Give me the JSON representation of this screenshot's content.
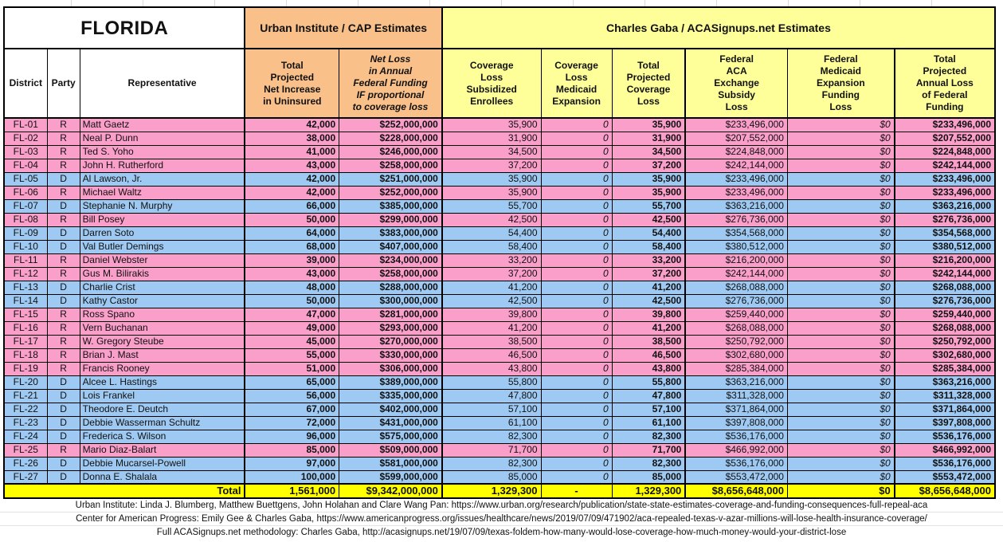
{
  "colors": {
    "republican_row": "#FA9ECA",
    "democrat_row": "#9EC9F2",
    "urban_header": "#F9C089",
    "gaba_header": "#FFFF99",
    "total_row": "#FFFF00"
  },
  "sheet": {
    "title": "FLORIDA",
    "groups": {
      "urban": "Urban Institute / CAP Estimates",
      "gaba": "Charles Gaba / ACASignups.net Estimates"
    },
    "columns": [
      "District",
      "Party",
      "Representative",
      "Total\nProjected\nNet Increase\nin Uninsured",
      "Net Loss\nin Annual\nFederal Funding\nIF proportional\nto coverage loss",
      "Coverage\nLoss\nSubsidized\nEnrollees",
      "Coverage\nLoss\nMedicaid\nExpansion",
      "Total\nProjected\nCoverage\nLoss",
      "Federal\nACA\nExchange\nSubsidy\nLoss",
      "Federal\nMedicaid\nExpansion\nFunding\nLoss",
      "Total\nProjected\nAnnual Loss\nof Federal\nFunding"
    ],
    "rows": [
      {
        "district": "FL-01",
        "party": "R",
        "rep": "Matt Gaetz",
        "values": [
          "42,000",
          "$252,000,000",
          "35,900",
          "0",
          "35,900",
          "$233,496,000",
          "$0",
          "$233,496,000"
        ]
      },
      {
        "district": "FL-02",
        "party": "R",
        "rep": "Neal P. Dunn",
        "values": [
          "38,000",
          "$228,000,000",
          "31,900",
          "0",
          "31,900",
          "$207,552,000",
          "$0",
          "$207,552,000"
        ]
      },
      {
        "district": "FL-03",
        "party": "R",
        "rep": "Ted S. Yoho",
        "values": [
          "41,000",
          "$246,000,000",
          "34,500",
          "0",
          "34,500",
          "$224,848,000",
          "$0",
          "$224,848,000"
        ]
      },
      {
        "district": "FL-04",
        "party": "R",
        "rep": "John H. Rutherford",
        "values": [
          "43,000",
          "$258,000,000",
          "37,200",
          "0",
          "37,200",
          "$242,144,000",
          "$0",
          "$242,144,000"
        ]
      },
      {
        "district": "FL-05",
        "party": "D",
        "rep": "Al Lawson, Jr.",
        "values": [
          "42,000",
          "$251,000,000",
          "35,900",
          "0",
          "35,900",
          "$233,496,000",
          "$0",
          "$233,496,000"
        ]
      },
      {
        "district": "FL-06",
        "party": "R",
        "rep": "Michael Waltz",
        "values": [
          "42,000",
          "$252,000,000",
          "35,900",
          "0",
          "35,900",
          "$233,496,000",
          "$0",
          "$233,496,000"
        ]
      },
      {
        "district": "FL-07",
        "party": "D",
        "rep": "Stephanie N. Murphy",
        "values": [
          "66,000",
          "$385,000,000",
          "55,700",
          "0",
          "55,700",
          "$363,216,000",
          "$0",
          "$363,216,000"
        ]
      },
      {
        "district": "FL-08",
        "party": "R",
        "rep": "Bill Posey",
        "values": [
          "50,000",
          "$299,000,000",
          "42,500",
          "0",
          "42,500",
          "$276,736,000",
          "$0",
          "$276,736,000"
        ]
      },
      {
        "district": "FL-09",
        "party": "D",
        "rep": "Darren Soto",
        "values": [
          "64,000",
          "$383,000,000",
          "54,400",
          "0",
          "54,400",
          "$354,568,000",
          "$0",
          "$354,568,000"
        ]
      },
      {
        "district": "FL-10",
        "party": "D",
        "rep": "Val Butler Demings",
        "values": [
          "68,000",
          "$407,000,000",
          "58,400",
          "0",
          "58,400",
          "$380,512,000",
          "$0",
          "$380,512,000"
        ]
      },
      {
        "district": "FL-11",
        "party": "R",
        "rep": "Daniel Webster",
        "values": [
          "39,000",
          "$234,000,000",
          "33,200",
          "0",
          "33,200",
          "$216,200,000",
          "$0",
          "$216,200,000"
        ]
      },
      {
        "district": "FL-12",
        "party": "R",
        "rep": "Gus M. Bilirakis",
        "values": [
          "43,000",
          "$258,000,000",
          "37,200",
          "0",
          "37,200",
          "$242,144,000",
          "$0",
          "$242,144,000"
        ]
      },
      {
        "district": "FL-13",
        "party": "D",
        "rep": "Charlie Crist",
        "values": [
          "48,000",
          "$288,000,000",
          "41,200",
          "0",
          "41,200",
          "$268,088,000",
          "$0",
          "$268,088,000"
        ]
      },
      {
        "district": "FL-14",
        "party": "D",
        "rep": "Kathy Castor",
        "values": [
          "50,000",
          "$300,000,000",
          "42,500",
          "0",
          "42,500",
          "$276,736,000",
          "$0",
          "$276,736,000"
        ]
      },
      {
        "district": "FL-15",
        "party": "R",
        "rep": "Ross Spano",
        "values": [
          "47,000",
          "$281,000,000",
          "39,800",
          "0",
          "39,800",
          "$259,440,000",
          "$0",
          "$259,440,000"
        ]
      },
      {
        "district": "FL-16",
        "party": "R",
        "rep": "Vern Buchanan",
        "values": [
          "49,000",
          "$293,000,000",
          "41,200",
          "0",
          "41,200",
          "$268,088,000",
          "$0",
          "$268,088,000"
        ]
      },
      {
        "district": "FL-17",
        "party": "R",
        "rep": "W. Gregory Steube",
        "values": [
          "45,000",
          "$270,000,000",
          "38,500",
          "0",
          "38,500",
          "$250,792,000",
          "$0",
          "$250,792,000"
        ]
      },
      {
        "district": "FL-18",
        "party": "R",
        "rep": "Brian J. Mast",
        "values": [
          "55,000",
          "$330,000,000",
          "46,500",
          "0",
          "46,500",
          "$302,680,000",
          "$0",
          "$302,680,000"
        ]
      },
      {
        "district": "FL-19",
        "party": "R",
        "rep": "Francis Rooney",
        "values": [
          "51,000",
          "$306,000,000",
          "43,800",
          "0",
          "43,800",
          "$285,384,000",
          "$0",
          "$285,384,000"
        ]
      },
      {
        "district": "FL-20",
        "party": "D",
        "rep": "Alcee L. Hastings",
        "values": [
          "65,000",
          "$389,000,000",
          "55,800",
          "0",
          "55,800",
          "$363,216,000",
          "$0",
          "$363,216,000"
        ]
      },
      {
        "district": "FL-21",
        "party": "D",
        "rep": "Lois Frankel",
        "values": [
          "56,000",
          "$335,000,000",
          "47,800",
          "0",
          "47,800",
          "$311,328,000",
          "$0",
          "$311,328,000"
        ]
      },
      {
        "district": "FL-22",
        "party": "D",
        "rep": "Theodore E. Deutch",
        "values": [
          "67,000",
          "$402,000,000",
          "57,100",
          "0",
          "57,100",
          "$371,864,000",
          "$0",
          "$371,864,000"
        ]
      },
      {
        "district": "FL-23",
        "party": "D",
        "rep": "Debbie Wasserman Schultz",
        "values": [
          "72,000",
          "$431,000,000",
          "61,100",
          "0",
          "61,100",
          "$397,808,000",
          "$0",
          "$397,808,000"
        ]
      },
      {
        "district": "FL-24",
        "party": "D",
        "rep": "Frederica S. Wilson",
        "values": [
          "96,000",
          "$575,000,000",
          "82,300",
          "0",
          "82,300",
          "$536,176,000",
          "$0",
          "$536,176,000"
        ]
      },
      {
        "district": "FL-25",
        "party": "R",
        "rep": "Mario Diaz-Balart",
        "values": [
          "85,000",
          "$509,000,000",
          "71,700",
          "0",
          "71,700",
          "$466,992,000",
          "$0",
          "$466,992,000"
        ]
      },
      {
        "district": "FL-26",
        "party": "D",
        "rep": "Debbie Mucarsel-Powell",
        "values": [
          "97,000",
          "$581,000,000",
          "82,300",
          "0",
          "82,300",
          "$536,176,000",
          "$0",
          "$536,176,000"
        ]
      },
      {
        "district": "FL-27",
        "party": "D",
        "rep": "Donna E. Shalala",
        "values": [
          "100,000",
          "$599,000,000",
          "85,000",
          "0",
          "85,000",
          "$553,472,000",
          "$0",
          "$553,472,000"
        ]
      }
    ],
    "total": {
      "label": "Total",
      "values": [
        "1,561,000",
        "$9,342,000,000",
        "1,329,300",
        "-",
        "1,329,300",
        "$8,656,648,000",
        "$0",
        "$8,656,648,000"
      ]
    },
    "footnotes": [
      "Urban Institute: Linda J. Blumberg, Matthew Buettgens, John Holahan and Clare Wang Pan: https://www.urban.org/research/publication/state-state-estimates-coverage-and-funding-consequences-full-repeal-aca",
      "Center for American Progress: Emily Gee & Charles Gaba, https://www.americanprogress.org/issues/healthcare/news/2019/07/09/471902/aca-repealed-texas-v-azar-millions-will-lose-health-insurance-coverage/",
      "Full ACASignups.net methodology: Charles Gaba, http://acasignups.net/19/07/09/texas-foldem-how-many-would-lose-coverage-how-much-money-would-your-district-lose"
    ]
  }
}
